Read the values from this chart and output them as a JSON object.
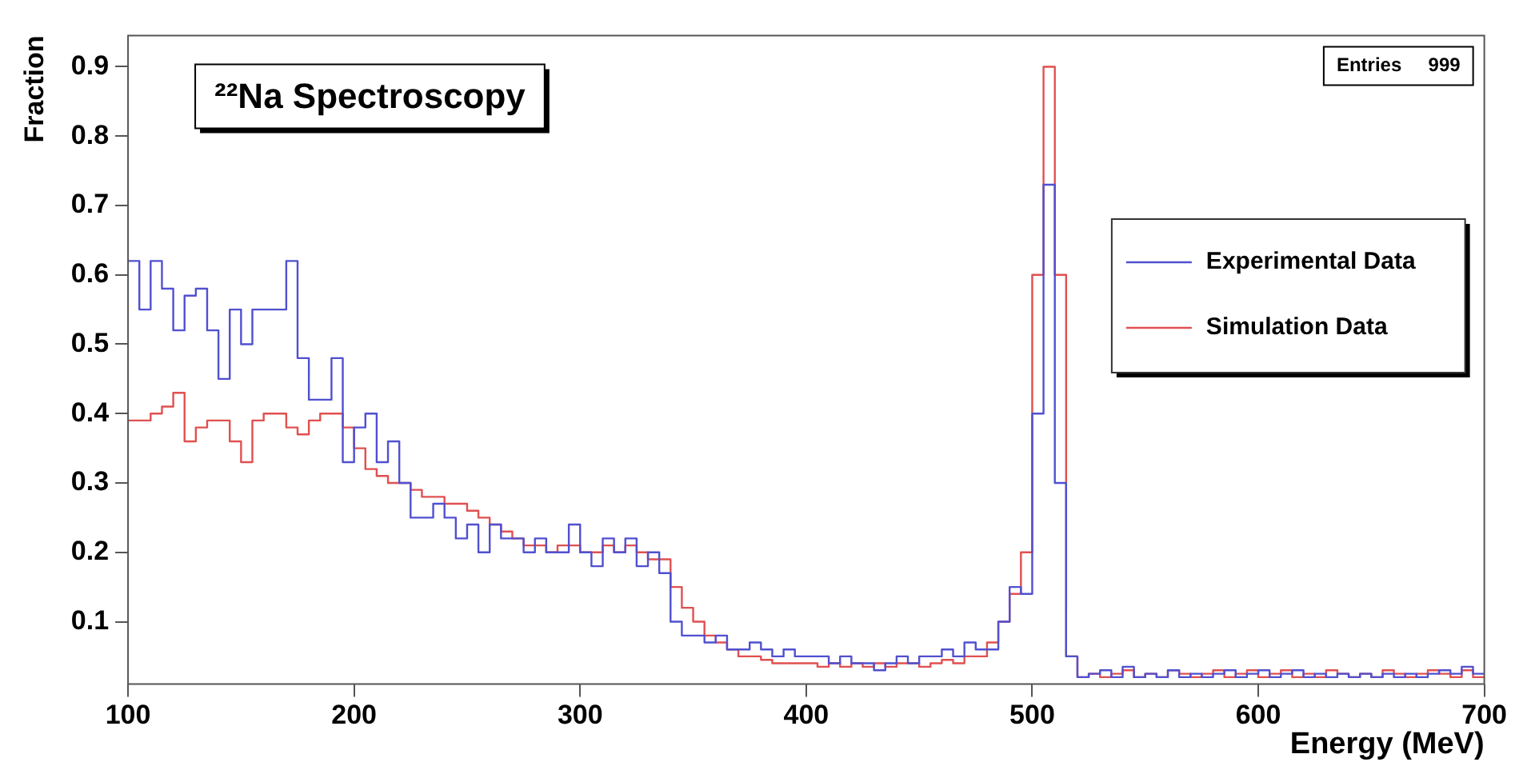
{
  "chart_data": {
    "type": "histogram",
    "title": "²²Na Spectroscopy",
    "xlabel": "Energy (MeV)",
    "ylabel": "Fraction",
    "annotations": [
      "Entries     999"
    ],
    "bins": [
      100,
      105,
      110,
      115,
      120,
      125,
      130,
      135,
      140,
      145,
      150,
      155,
      160,
      165,
      170,
      175,
      180,
      185,
      190,
      195,
      200,
      205,
      210,
      215,
      220,
      225,
      230,
      235,
      240,
      245,
      250,
      255,
      260,
      265,
      270,
      275,
      280,
      285,
      290,
      295,
      300,
      305,
      310,
      315,
      320,
      325,
      330,
      335,
      340,
      345,
      350,
      355,
      360,
      365,
      370,
      375,
      380,
      385,
      390,
      395,
      400,
      405,
      410,
      415,
      420,
      425,
      430,
      435,
      440,
      445,
      450,
      455,
      460,
      465,
      470,
      475,
      480,
      485,
      490,
      495,
      500,
      505,
      510,
      515,
      520,
      525,
      530,
      535,
      540,
      545,
      550,
      555,
      560,
      565,
      570,
      575,
      580,
      585,
      590,
      595,
      600,
      605,
      610,
      615,
      620,
      625,
      630,
      635,
      640,
      645,
      650,
      655,
      660,
      665,
      670,
      675,
      680,
      685,
      690,
      695,
      700
    ],
    "series": [
      {
        "name": "Experimental Data",
        "color": "#5050d0",
        "values": [
          0.62,
          0.55,
          0.62,
          0.58,
          0.52,
          0.57,
          0.58,
          0.52,
          0.45,
          0.55,
          0.5,
          0.55,
          0.55,
          0.55,
          0.62,
          0.48,
          0.42,
          0.42,
          0.48,
          0.33,
          0.38,
          0.4,
          0.33,
          0.36,
          0.3,
          0.25,
          0.25,
          0.27,
          0.25,
          0.22,
          0.24,
          0.2,
          0.24,
          0.22,
          0.22,
          0.2,
          0.22,
          0.2,
          0.2,
          0.24,
          0.2,
          0.18,
          0.22,
          0.2,
          0.22,
          0.18,
          0.2,
          0.17,
          0.1,
          0.08,
          0.08,
          0.07,
          0.08,
          0.06,
          0.06,
          0.07,
          0.06,
          0.05,
          0.06,
          0.05,
          0.05,
          0.05,
          0.04,
          0.05,
          0.04,
          0.04,
          0.03,
          0.04,
          0.05,
          0.04,
          0.05,
          0.05,
          0.06,
          0.05,
          0.07,
          0.06,
          0.06,
          0.1,
          0.15,
          0.14,
          0.4,
          0.73,
          0.3,
          0.05,
          0.02,
          0.025,
          0.03,
          0.02,
          0.035,
          0.02,
          0.025,
          0.02,
          0.03,
          0.02,
          0.025,
          0.02,
          0.025,
          0.03,
          0.02,
          0.025,
          0.03,
          0.02,
          0.025,
          0.03,
          0.02,
          0.025,
          0.02,
          0.025,
          0.02,
          0.025,
          0.02,
          0.025,
          0.02,
          0.025,
          0.02,
          0.025,
          0.03,
          0.025,
          0.035,
          0.025
        ]
      },
      {
        "name": "Simulation Data",
        "color": "#e05050",
        "values": [
          0.39,
          0.39,
          0.4,
          0.41,
          0.43,
          0.36,
          0.38,
          0.39,
          0.39,
          0.36,
          0.33,
          0.39,
          0.4,
          0.4,
          0.38,
          0.37,
          0.39,
          0.4,
          0.4,
          0.38,
          0.35,
          0.32,
          0.31,
          0.3,
          0.3,
          0.29,
          0.28,
          0.28,
          0.27,
          0.27,
          0.26,
          0.25,
          0.24,
          0.23,
          0.22,
          0.21,
          0.21,
          0.2,
          0.21,
          0.21,
          0.2,
          0.2,
          0.21,
          0.2,
          0.21,
          0.2,
          0.19,
          0.19,
          0.15,
          0.12,
          0.1,
          0.08,
          0.07,
          0.06,
          0.05,
          0.05,
          0.045,
          0.04,
          0.04,
          0.04,
          0.04,
          0.035,
          0.04,
          0.035,
          0.04,
          0.035,
          0.04,
          0.035,
          0.04,
          0.04,
          0.035,
          0.04,
          0.045,
          0.04,
          0.05,
          0.05,
          0.07,
          0.1,
          0.14,
          0.2,
          0.6,
          0.9,
          0.6,
          0.05,
          0.02,
          0.025,
          0.02,
          0.025,
          0.03,
          0.02,
          0.025,
          0.02,
          0.03,
          0.025,
          0.02,
          0.025,
          0.03,
          0.02,
          0.025,
          0.03,
          0.02,
          0.025,
          0.03,
          0.02,
          0.025,
          0.02,
          0.03,
          0.025,
          0.02,
          0.025,
          0.02,
          0.03,
          0.025,
          0.02,
          0.025,
          0.03,
          0.025,
          0.02,
          0.03,
          0.02
        ]
      }
    ],
    "xlim": [
      100,
      700
    ],
    "xticks": [
      100,
      200,
      300,
      400,
      500,
      600,
      700
    ],
    "ylim": [
      0.01,
      0.945
    ],
    "yticks": [
      0.1,
      0.2,
      0.3,
      0.4,
      0.5,
      0.6,
      0.7,
      0.8,
      0.9
    ],
    "grid": false,
    "legend": "right"
  }
}
